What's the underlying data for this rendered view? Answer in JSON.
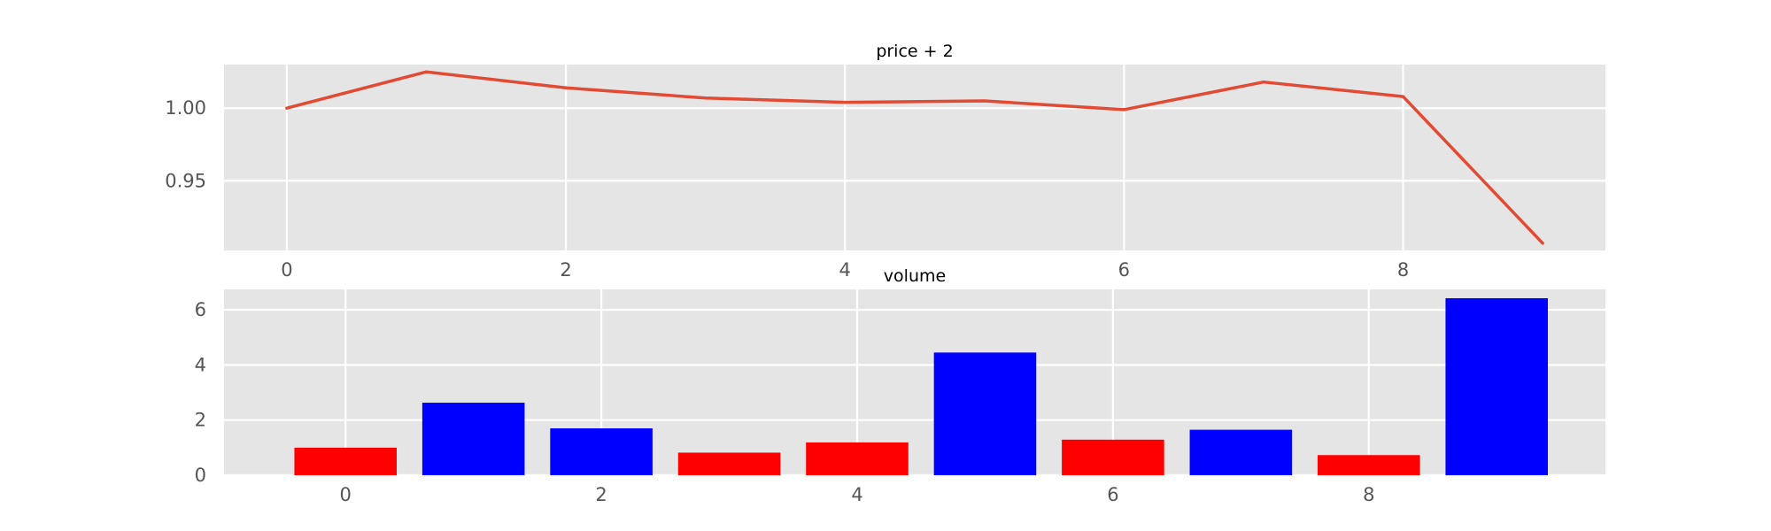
{
  "chart_data": [
    {
      "type": "line",
      "title": "price + 2",
      "xlabel": "",
      "ylabel": "",
      "x": [
        0,
        1,
        2,
        3,
        4,
        5,
        6,
        7,
        8,
        9
      ],
      "series": [
        {
          "values": [
            1.0,
            1.025,
            1.014,
            1.007,
            1.004,
            1.005,
            0.999,
            1.018,
            1.008,
            0.907
          ]
        }
      ],
      "xlim": [
        -0.45,
        9.45
      ],
      "ylim": [
        0.902,
        1.03
      ],
      "xticks": [
        0,
        2,
        4,
        6,
        8
      ],
      "xtick_labels": [
        "0",
        "2",
        "4",
        "6",
        "8"
      ],
      "yticks": [
        0.95,
        1.0
      ],
      "ytick_labels": [
        "0.95",
        "1.00"
      ],
      "grid": true,
      "colors": {
        "line": "#e24a33",
        "background": "#e5e5e5",
        "grid": "#ffffff"
      }
    },
    {
      "type": "bar",
      "title": "volume",
      "xlabel": "",
      "ylabel": "",
      "x": [
        0,
        1,
        2,
        3,
        4,
        5,
        6,
        7,
        8,
        9
      ],
      "values": [
        1.0,
        2.63,
        1.7,
        0.82,
        1.19,
        4.45,
        1.29,
        1.65,
        0.73,
        6.42
      ],
      "bar_colors": [
        "#ff0000",
        "#0000ff",
        "#0000ff",
        "#ff0000",
        "#ff0000",
        "#0000ff",
        "#ff0000",
        "#0000ff",
        "#ff0000",
        "#0000ff"
      ],
      "xlim": [
        -0.95,
        9.85
      ],
      "ylim": [
        0,
        6.74
      ],
      "xticks": [
        0,
        2,
        4,
        6,
        8
      ],
      "xtick_labels": [
        "0",
        "2",
        "4",
        "6",
        "8"
      ],
      "yticks": [
        0,
        2,
        4,
        6
      ],
      "ytick_labels": [
        "0",
        "2",
        "4",
        "6"
      ],
      "grid": true,
      "colors": {
        "background": "#e5e5e5",
        "grid": "#ffffff"
      }
    }
  ]
}
